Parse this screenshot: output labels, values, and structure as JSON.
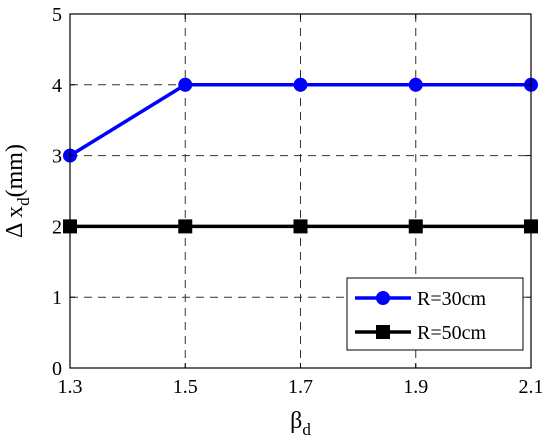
{
  "chart_data": {
    "type": "line",
    "x": [
      1.3,
      1.5,
      1.7,
      1.9,
      2.1
    ],
    "xticks": [
      "1.3",
      "1.5",
      "1.7",
      "1.9",
      "2.1"
    ],
    "yticks": [
      "0",
      "1",
      "2",
      "3",
      "4",
      "5"
    ],
    "xlim": [
      1.3,
      2.1
    ],
    "ylim": [
      0,
      5
    ],
    "grid": true,
    "legend_position": "bottom-right",
    "xlabel": {
      "main": "β",
      "sub": "d"
    },
    "ylabel": {
      "prefix": "Δ x",
      "sub": "d",
      "suffix": "(mm)"
    },
    "series": [
      {
        "name": "R=30cm",
        "color": "#0000ff",
        "marker": "circle",
        "values": [
          3,
          4,
          4,
          4,
          4
        ]
      },
      {
        "name": "R=50cm",
        "color": "#000000",
        "marker": "square",
        "values": [
          2,
          2,
          2,
          2,
          2
        ]
      }
    ]
  }
}
